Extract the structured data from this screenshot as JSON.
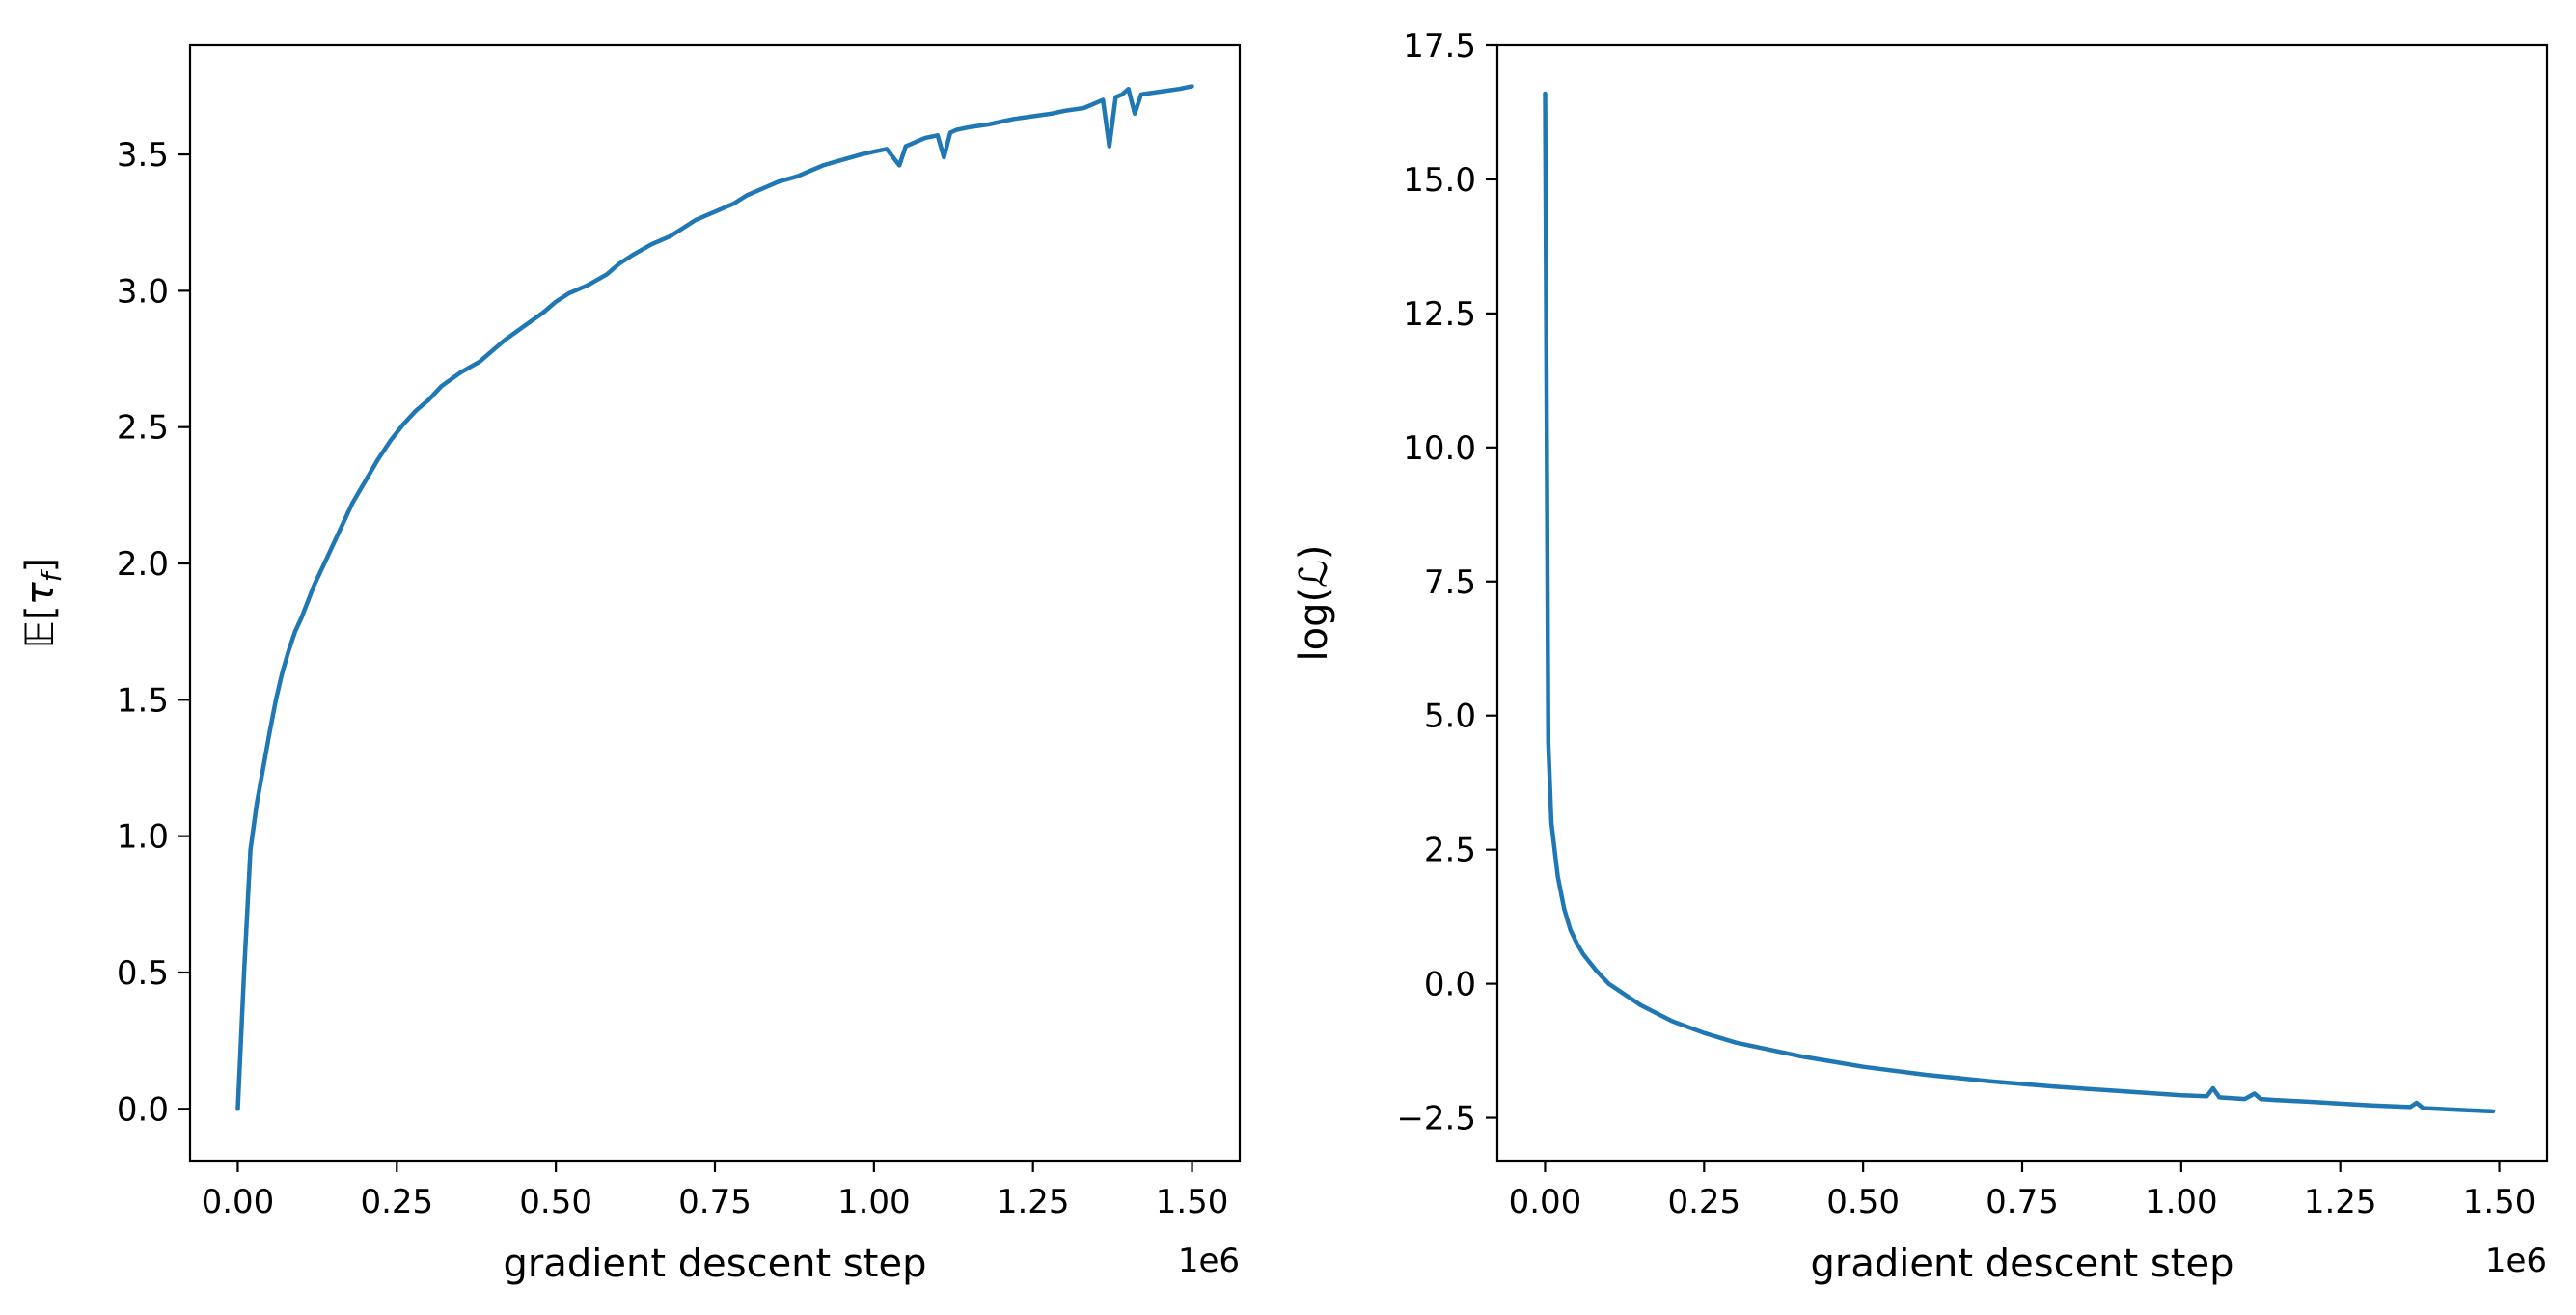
{
  "chart_data": [
    {
      "type": "line",
      "xlabel": "gradient descent step",
      "ylabel": "𝔼[τ_f]",
      "ylabel_parts": {
        "prefix": "𝔼[",
        "symbol": "τ",
        "subscript": "f",
        "suffix": "]"
      },
      "x_offset_label": "1e6",
      "xlim": [
        -0.075,
        1.575
      ],
      "ylim": [
        -0.19,
        3.9
      ],
      "xticks": [
        0.0,
        0.25,
        0.5,
        0.75,
        1.0,
        1.25,
        1.5
      ],
      "xtick_labels": [
        "0.00",
        "0.25",
        "0.50",
        "0.75",
        "1.00",
        "1.25",
        "1.50"
      ],
      "yticks": [
        0.0,
        0.5,
        1.0,
        1.5,
        2.0,
        2.5,
        3.0,
        3.5
      ],
      "ytick_labels": [
        "0.0",
        "0.5",
        "1.0",
        "1.5",
        "2.0",
        "2.5",
        "3.0",
        "3.5"
      ],
      "grid": false,
      "color": "#1f77b4",
      "series": [
        {
          "x": [
            0.0,
            0.01,
            0.02,
            0.03,
            0.04,
            0.05,
            0.06,
            0.07,
            0.08,
            0.09,
            0.1,
            0.12,
            0.14,
            0.16,
            0.18,
            0.2,
            0.22,
            0.24,
            0.26,
            0.28,
            0.3,
            0.32,
            0.35,
            0.38,
            0.4,
            0.42,
            0.45,
            0.48,
            0.5,
            0.52,
            0.55,
            0.58,
            0.6,
            0.62,
            0.65,
            0.68,
            0.7,
            0.72,
            0.75,
            0.78,
            0.8,
            0.82,
            0.85,
            0.88,
            0.9,
            0.92,
            0.95,
            0.98,
            1.0,
            1.02,
            1.04,
            1.05,
            1.06,
            1.08,
            1.1,
            1.11,
            1.12,
            1.13,
            1.15,
            1.18,
            1.2,
            1.22,
            1.25,
            1.28,
            1.3,
            1.33,
            1.35,
            1.36,
            1.37,
            1.38,
            1.39,
            1.4,
            1.41,
            1.42,
            1.45,
            1.48,
            1.5
          ],
          "y": [
            0.0,
            0.5,
            0.95,
            1.12,
            1.25,
            1.38,
            1.5,
            1.6,
            1.68,
            1.75,
            1.8,
            1.92,
            2.02,
            2.12,
            2.22,
            2.3,
            2.38,
            2.45,
            2.51,
            2.56,
            2.6,
            2.65,
            2.7,
            2.74,
            2.78,
            2.82,
            2.87,
            2.92,
            2.96,
            2.99,
            3.02,
            3.06,
            3.1,
            3.13,
            3.17,
            3.2,
            3.23,
            3.26,
            3.29,
            3.32,
            3.35,
            3.37,
            3.4,
            3.42,
            3.44,
            3.46,
            3.48,
            3.5,
            3.51,
            3.52,
            3.46,
            3.53,
            3.54,
            3.56,
            3.57,
            3.49,
            3.58,
            3.59,
            3.6,
            3.61,
            3.62,
            3.63,
            3.64,
            3.65,
            3.66,
            3.67,
            3.69,
            3.7,
            3.53,
            3.71,
            3.72,
            3.74,
            3.65,
            3.72,
            3.73,
            3.74,
            3.75
          ]
        }
      ]
    },
    {
      "type": "line",
      "xlabel": "gradient descent step",
      "ylabel": "log(ℒ)",
      "ylabel_parts": {
        "prefix": "log(",
        "symbol": "ℒ",
        "suffix": ")"
      },
      "x_offset_label": "1e6",
      "xlim": [
        -0.075,
        1.575
      ],
      "ylim": [
        -3.3,
        17.5
      ],
      "xticks": [
        0.0,
        0.25,
        0.5,
        0.75,
        1.0,
        1.25,
        1.5
      ],
      "xtick_labels": [
        "0.00",
        "0.25",
        "0.50",
        "0.75",
        "1.00",
        "1.25",
        "1.50"
      ],
      "yticks": [
        -2.5,
        0.0,
        2.5,
        5.0,
        7.5,
        10.0,
        12.5,
        15.0,
        17.5
      ],
      "ytick_labels": [
        "−2.5",
        "0.0",
        "2.5",
        "5.0",
        "7.5",
        "10.0",
        "12.5",
        "15.0",
        "17.5"
      ],
      "grid": false,
      "color": "#1f77b4",
      "series": [
        {
          "x": [
            0.0,
            0.005,
            0.01,
            0.02,
            0.03,
            0.04,
            0.05,
            0.06,
            0.08,
            0.1,
            0.15,
            0.2,
            0.25,
            0.3,
            0.4,
            0.5,
            0.6,
            0.7,
            0.8,
            0.9,
            1.0,
            1.04,
            1.05,
            1.06,
            1.1,
            1.115,
            1.125,
            1.15,
            1.2,
            1.3,
            1.36,
            1.37,
            1.38,
            1.4,
            1.45,
            1.49
          ],
          "y": [
            16.6,
            4.5,
            3.0,
            2.0,
            1.4,
            1.0,
            0.75,
            0.55,
            0.25,
            0.0,
            -0.4,
            -0.7,
            -0.92,
            -1.1,
            -1.35,
            -1.55,
            -1.7,
            -1.82,
            -1.92,
            -2.0,
            -2.08,
            -2.1,
            -1.95,
            -2.12,
            -2.15,
            -2.05,
            -2.15,
            -2.17,
            -2.2,
            -2.27,
            -2.3,
            -2.22,
            -2.32,
            -2.33,
            -2.36,
            -2.38
          ]
        }
      ]
    }
  ]
}
